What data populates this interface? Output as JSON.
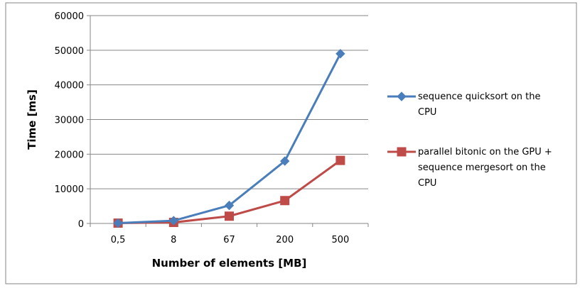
{
  "chart_data": {
    "type": "line",
    "title": "",
    "xlabel": "Number of elements [MB]",
    "ylabel": "Time [ms]",
    "categories": [
      "0,5",
      "8",
      "67",
      "200",
      "500"
    ],
    "ylim": [
      0,
      60000
    ],
    "yticks": [
      0,
      10000,
      20000,
      30000,
      40000,
      50000,
      60000
    ],
    "grid": "horizontal",
    "legend_position": "right",
    "series": [
      {
        "name": "sequence quicksort on the CPU",
        "legend_lines": [
          "sequence quicksort on the",
          "CPU"
        ],
        "values": [
          100,
          800,
          5200,
          18000,
          49000
        ],
        "color": "#4a7ebb",
        "marker": "diamond"
      },
      {
        "name": "parallel bitonic on the GPU + sequence mergesort on the CPU",
        "legend_lines": [
          "parallel bitonic on the GPU +",
          "sequence mergesort on the",
          "CPU"
        ],
        "values": [
          100,
          300,
          2100,
          6600,
          18200
        ],
        "color": "#be4b48",
        "marker": "square"
      }
    ]
  }
}
